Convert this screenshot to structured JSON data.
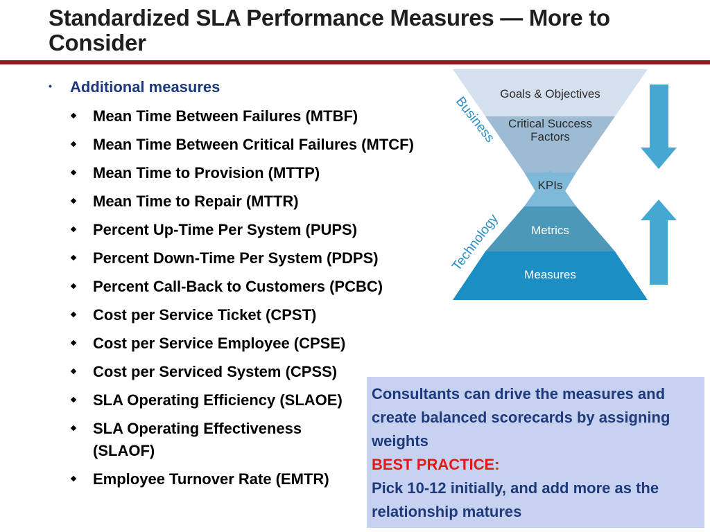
{
  "slide": {
    "title": "Standardized SLA Performance Measures — More to Consider"
  },
  "bullets": {
    "main": "Additional measures",
    "items": [
      "Mean Time Between Failures (MTBF)",
      "Mean Time Between Critical Failures (MTCF)",
      "Mean Time to Provision (MTTP)",
      "Mean Time to Repair (MTTR)",
      "Percent Up-Time Per System (PUPS)",
      "Percent Down-Time Per System (PDPS)",
      "Percent Call-Back to Customers (PCBC)",
      "Cost per Service Ticket (CPST)",
      "Cost per Service Employee (CPSE)",
      "Cost per Serviced System (CPSS)",
      "SLA Operating Efficiency (SLAOE)",
      "SLA Operating Effectiveness (SLAOF)",
      "Employee Turnover Rate (EMTR)"
    ]
  },
  "diagram": {
    "top_layers": [
      "Goals & Objectives",
      "Critical Success Factors",
      "KPIs"
    ],
    "bottom_layers": [
      "Metrics",
      "Measures"
    ],
    "side_labels": {
      "business": "Business",
      "technology": "Technology"
    },
    "arrows": [
      "down",
      "up"
    ],
    "colors": {
      "goals": "#d5e0ee",
      "csf": "#9dbcd4",
      "kpis": "#7fb9d9",
      "metrics": "#4b98b8",
      "measures": "#1b8fc3",
      "arrow": "#45a8d2",
      "label": "#2a8fc0"
    }
  },
  "callout": {
    "text1": "Consultants can drive the measures and create balanced scorecards by assigning weights",
    "highlight": "BEST PRACTICE:",
    "text2": "Pick 10-12 initially, and add more as the relationship matures"
  },
  "colors": {
    "title_rule": "#8b1a1a",
    "heading_blue": "#1e3a7c",
    "highlight_red": "#e11919",
    "callout_bg": "#c6d2f0"
  }
}
